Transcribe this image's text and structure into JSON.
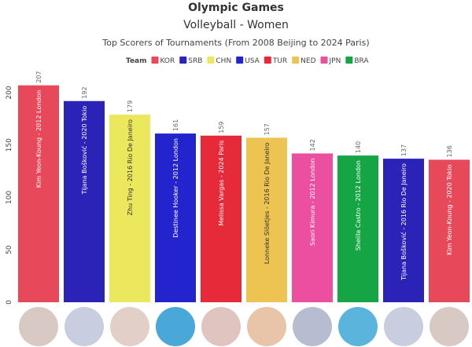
{
  "chart_data": {
    "type": "bar",
    "title": "Olympic Games",
    "subtitle": "Volleyball - Women",
    "caption": "Top Scorers of Tournaments (From 2008 Beijing to 2024 Paris)",
    "legend_title": "Team",
    "legend": [
      {
        "name": "KOR",
        "color": "#e8495a"
      },
      {
        "name": "SRB",
        "color": "#2b22b8"
      },
      {
        "name": "CHN",
        "color": "#ece85e"
      },
      {
        "name": "USA",
        "color": "#2424cf"
      },
      {
        "name": "TUR",
        "color": "#e62a3a"
      },
      {
        "name": "NED",
        "color": "#edc452"
      },
      {
        "name": "JPN",
        "color": "#ec4f9f"
      },
      {
        "name": "BRA",
        "color": "#15a545"
      }
    ],
    "categories": [
      "Kim Yeon-Koung - 2012 London",
      "Tijana Bošković - 2020 Tokio",
      "Zhu Ting - 2016 Rio De Janeiro",
      "Destinee Hooker - 2012 London",
      "Melissa Vargas - 2024 Paris",
      "Lonneke Slöetjes - 2016 Rio De Janeiro",
      "Saori Kimura - 2012 London",
      "Sheilla Castro - 2012 London",
      "Tijana Bošković - 2016 Rio De Janeiro",
      "Kim Yeon-Koung - 2020 Tokio"
    ],
    "values": [
      207,
      192,
      179,
      161,
      159,
      157,
      142,
      140,
      137,
      136
    ],
    "colors": [
      "#e8495a",
      "#2b22b8",
      "#ece85e",
      "#2424cf",
      "#e62a3a",
      "#edc452",
      "#ec4f9f",
      "#15a545",
      "#2b22b8",
      "#e8495a"
    ],
    "ylim": [
      0,
      215
    ],
    "yticks": [
      0,
      50,
      100,
      150,
      200
    ]
  }
}
